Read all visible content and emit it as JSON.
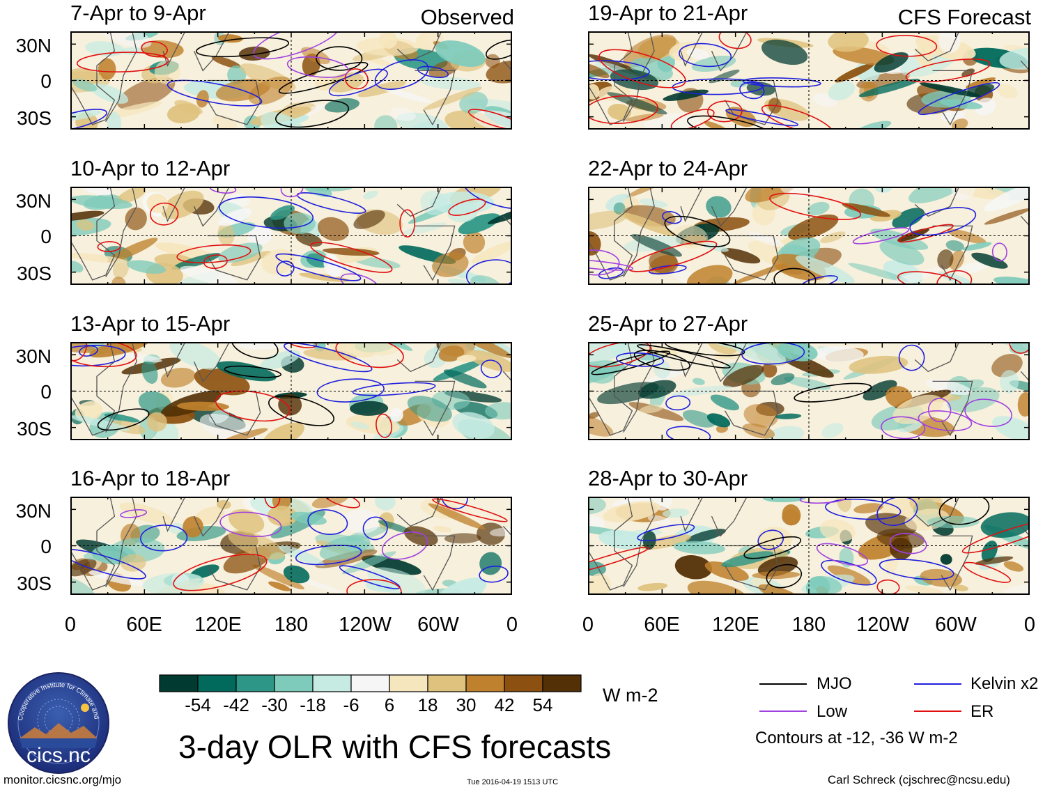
{
  "headers": {
    "left": "Observed",
    "right": "CFS Forecast"
  },
  "panels_left": [
    {
      "title": "7-Apr to 9-Apr"
    },
    {
      "title": "10-Apr to 12-Apr"
    },
    {
      "title": "13-Apr to 15-Apr"
    },
    {
      "title": "16-Apr to 18-Apr"
    }
  ],
  "panels_right": [
    {
      "title": "19-Apr to 21-Apr"
    },
    {
      "title": "22-Apr to 24-Apr"
    },
    {
      "title": "25-Apr to 27-Apr"
    },
    {
      "title": "28-Apr to 30-Apr"
    }
  ],
  "lat_labels": [
    "30N",
    "0",
    "30S"
  ],
  "lon_labels": [
    "0",
    "60E",
    "120E",
    "180",
    "120W",
    "60W",
    "0"
  ],
  "colorbar": {
    "colors": [
      "#013a30",
      "#016a5c",
      "#2e9686",
      "#7ecbbb",
      "#c5ebe3",
      "#f6f6f6",
      "#f6e6bd",
      "#dfc27e",
      "#bf812d",
      "#8c5110",
      "#543006"
    ],
    "tick_labels": [
      "-54",
      "-42",
      "-30",
      "-18",
      "-6",
      "6",
      "18",
      "30",
      "42",
      "54"
    ],
    "units": "W m-2"
  },
  "legend": {
    "items": [
      {
        "label": "MJO",
        "color": "#000000"
      },
      {
        "label": "Kelvin x2",
        "color": "#1f1fdd"
      },
      {
        "label": "Low",
        "color": "#a040e0"
      },
      {
        "label": "ER",
        "color": "#e01010"
      }
    ],
    "note": "Contours at -12, -36 W m-2"
  },
  "logo": {
    "text": "cics.nc",
    "ring_text": "Cooperative Institute for Climate and Satellites"
  },
  "title": "3-day OLR with CFS forecasts",
  "footer": {
    "url": "monitor.cicsnc.org/mjo",
    "timestamp": "Tue 2016-04-19 1513 UTC",
    "author": "Carl Schreck (cjschrec@ncsu.edu)"
  }
}
